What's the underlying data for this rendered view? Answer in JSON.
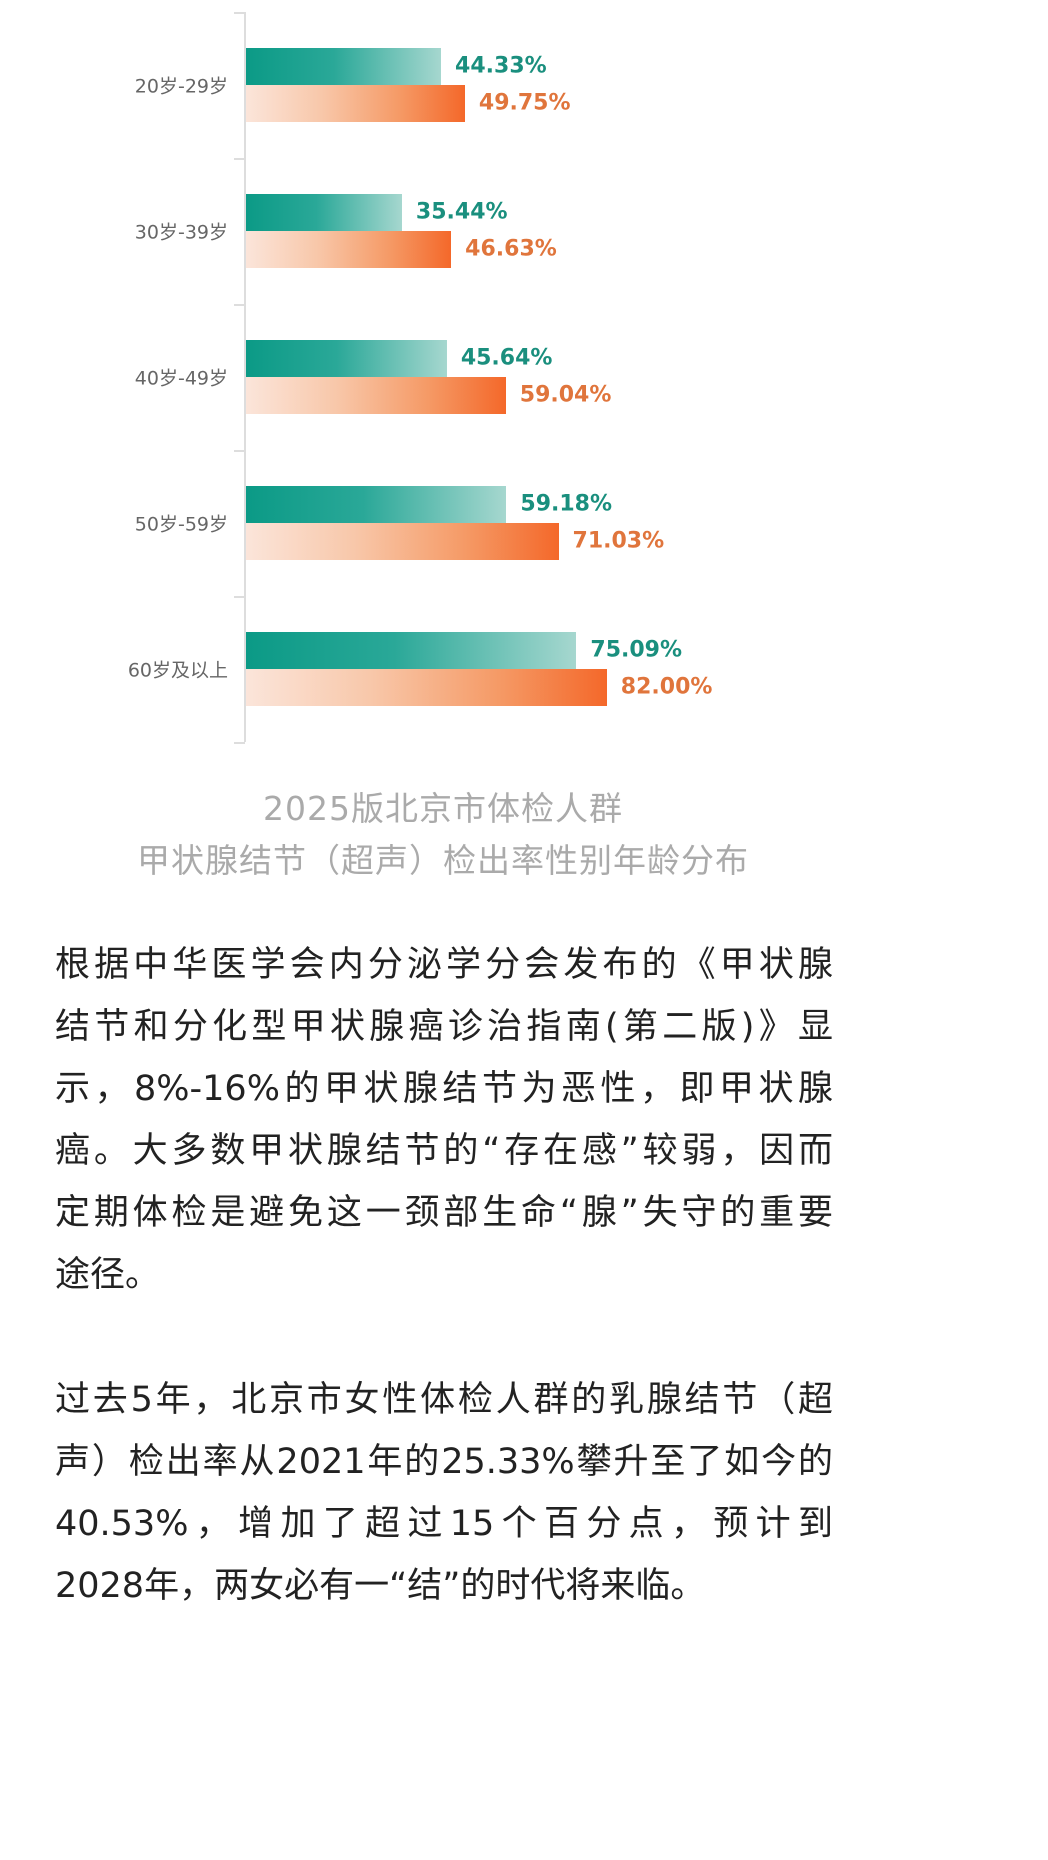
{
  "chart_data": {
    "type": "bar",
    "orientation": "horizontal",
    "title": "2025版北京市体检人群",
    "subtitle": "甲状腺结节（超声）检出率性别年龄分布",
    "categories": [
      "20岁-29岁",
      "30岁-39岁",
      "40岁-49岁",
      "50岁-59岁",
      "60岁及以上"
    ],
    "series": [
      {
        "name": "teal",
        "color": "#1a8f7e",
        "values": [
          44.33,
          35.44,
          45.64,
          59.18,
          75.09
        ],
        "labels": [
          "44.33%",
          "35.44%",
          "45.64%",
          "59.18%",
          "75.09%"
        ]
      },
      {
        "name": "orange",
        "color": "#e0753c",
        "values": [
          49.75,
          46.63,
          59.04,
          71.03,
          82.0
        ],
        "labels": [
          "49.75%",
          "46.63%",
          "59.04%",
          "71.03%",
          "82.00%"
        ]
      }
    ],
    "xlim": [
      0,
      100
    ],
    "grid": false
  },
  "article": {
    "paragraphs": [
      [
        "根据中华医学会内分泌学分会发布的《甲状腺",
        "结节和分化型甲状腺癌诊治指南(第二版)》显",
        "示，8%-16%的甲状腺结节为恶性，即甲状腺",
        "癌。大多数甲状腺结节的“存在感”较弱，因而",
        "定期体检是避免这一颈部生命“腺”失守的重要",
        "途径。"
      ],
      [
        "过去5年，北京市女性体检人群的乳腺结节（超",
        "声）检出率从2021年的25.33%攀升至了如今的",
        "40.53%，增加了超过15个百分点，预计到",
        "2028年，两女必有一“结”的时代将来临。"
      ]
    ]
  }
}
